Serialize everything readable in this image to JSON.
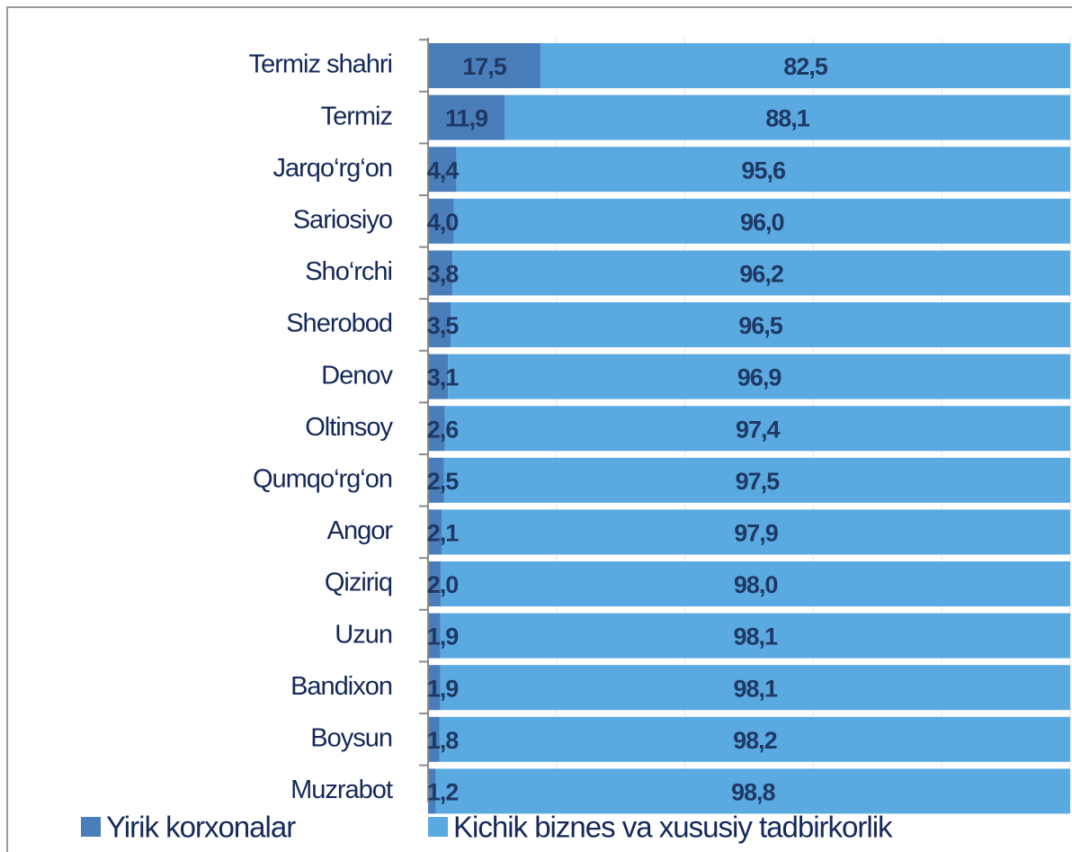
{
  "chart_data": {
    "type": "stacked-barh",
    "categories": [
      "Termiz shahri",
      "Termiz",
      "Jarqo‘rg‘on",
      "Sariosiyo",
      "Sho‘rchi",
      "Sherobod",
      "Denov",
      "Oltinsoy",
      "Qumqo‘rg‘on",
      "Angor",
      "Qiziriq",
      "Uzun",
      "Bandixon",
      "Boysun",
      "Muzrabot"
    ],
    "series": [
      {
        "name": "Yirik korxonalar",
        "color": "#4a7ebb",
        "values": [
          17.5,
          11.9,
          4.4,
          4.0,
          3.8,
          3.5,
          3.1,
          2.6,
          2.5,
          2.1,
          2.0,
          1.9,
          1.9,
          1.8,
          1.2
        ],
        "value_labels": [
          "17,5",
          "11,9",
          "4,4",
          "4,0",
          "3,8",
          "3,5",
          "3,1",
          "2,6",
          "2,5",
          "2,1",
          "2,0",
          "1,9",
          "1,9",
          "1,8",
          "1,2"
        ]
      },
      {
        "name": "Kichik biznes va xususiy tadbirkorlik",
        "color": "#5aaae1",
        "values": [
          82.5,
          88.1,
          95.6,
          96.0,
          96.2,
          96.5,
          96.9,
          97.4,
          97.5,
          97.9,
          98.0,
          98.1,
          98.1,
          98.2,
          98.8
        ],
        "value_labels": [
          "82,5",
          "88,1",
          "95,6",
          "96,0",
          "96,2",
          "96,5",
          "96,9",
          "97,4",
          "97,5",
          "97,9",
          "98,0",
          "98,1",
          "98,1",
          "98,2",
          "98,8"
        ]
      }
    ],
    "xlim": [
      0,
      100
    ],
    "xticks": [
      0,
      20,
      40,
      60,
      80,
      100
    ],
    "grid": true,
    "legend": "bottom"
  }
}
